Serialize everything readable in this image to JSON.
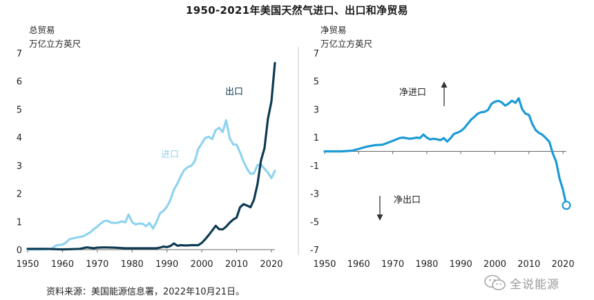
{
  "title": "1950-2021年美国天然气进口、出口和净贸易",
  "source": "资料来源：美国能源信息署，2022年10月21日。",
  "watermark": "全说能源",
  "colors": {
    "imports": "#8fd3f0",
    "exports": "#0d3a52",
    "net": "#1a9ad6",
    "axis": "#666666"
  },
  "chart_data": [
    {
      "type": "line",
      "panel": "left",
      "ylabel_line1": "总贸易",
      "ylabel_line2": "万亿立方英尺",
      "xlim": [
        1950,
        2021
      ],
      "ylim": [
        0,
        7
      ],
      "x_ticks": [
        1950,
        1960,
        1970,
        1980,
        1990,
        2000,
        2010,
        2020
      ],
      "y_ticks": [
        0,
        1,
        2,
        3,
        4,
        5,
        6,
        7
      ],
      "annotations": [
        "进口",
        "出口"
      ],
      "series": [
        {
          "name": "进口",
          "x": [
            1950,
            1955,
            1957,
            1958,
            1959,
            1960,
            1961,
            1962,
            1963,
            1964,
            1965,
            1966,
            1967,
            1968,
            1969,
            1970,
            1971,
            1972,
            1973,
            1974,
            1975,
            1976,
            1977,
            1978,
            1979,
            1980,
            1981,
            1982,
            1983,
            1984,
            1985,
            1986,
            1987,
            1988,
            1989,
            1990,
            1991,
            1992,
            1993,
            1994,
            1995,
            1996,
            1997,
            1998,
            1999,
            2000,
            2001,
            2002,
            2003,
            2004,
            2005,
            2006,
            2007,
            2008,
            2009,
            2010,
            2011,
            2012,
            2013,
            2014,
            2015,
            2016,
            2017,
            2018,
            2019,
            2020,
            2021
          ],
          "y": [
            0.0,
            0.01,
            0.04,
            0.14,
            0.17,
            0.18,
            0.25,
            0.37,
            0.4,
            0.43,
            0.45,
            0.48,
            0.55,
            0.62,
            0.73,
            0.82,
            0.93,
            1.02,
            1.03,
            0.96,
            0.95,
            0.96,
            1.01,
            0.97,
            1.25,
            0.98,
            0.9,
            0.93,
            0.92,
            0.84,
            0.95,
            0.75,
            0.99,
            1.29,
            1.38,
            1.53,
            1.77,
            2.14,
            2.35,
            2.62,
            2.84,
            2.94,
            2.99,
            3.15,
            3.59,
            3.78,
            3.98,
            4.02,
            3.94,
            4.26,
            4.34,
            4.19,
            4.61,
            3.98,
            3.75,
            3.74,
            3.46,
            3.14,
            2.88,
            2.7,
            2.72,
            3.01,
            3.03,
            2.88,
            2.74,
            2.55,
            2.81
          ]
        },
        {
          "name": "出口",
          "x": [
            1950,
            1955,
            1960,
            1963,
            1965,
            1967,
            1969,
            1970,
            1972,
            1975,
            1978,
            1980,
            1982,
            1985,
            1987,
            1988,
            1989,
            1990,
            1991,
            1992,
            1993,
            1994,
            1995,
            1996,
            1997,
            1998,
            1999,
            2000,
            2001,
            2002,
            2003,
            2004,
            2005,
            2006,
            2007,
            2008,
            2009,
            2010,
            2011,
            2012,
            2013,
            2014,
            2015,
            2016,
            2017,
            2018,
            2019,
            2020,
            2021
          ],
          "y": [
            0.03,
            0.03,
            0.01,
            0.02,
            0.03,
            0.08,
            0.05,
            0.07,
            0.08,
            0.07,
            0.05,
            0.05,
            0.05,
            0.05,
            0.05,
            0.07,
            0.11,
            0.09,
            0.13,
            0.22,
            0.14,
            0.16,
            0.15,
            0.15,
            0.16,
            0.16,
            0.16,
            0.24,
            0.37,
            0.52,
            0.68,
            0.85,
            0.73,
            0.72,
            0.82,
            0.96,
            1.07,
            1.14,
            1.51,
            1.62,
            1.57,
            1.51,
            1.78,
            2.33,
            3.17,
            3.61,
            4.66,
            5.28,
            6.65
          ]
        }
      ]
    },
    {
      "type": "line",
      "panel": "right",
      "ylabel_line1": "净贸易",
      "ylabel_line2": "万亿立方英尺",
      "xlim": [
        1950,
        2021
      ],
      "ylim": [
        -7,
        7
      ],
      "x_ticks": [
        1950,
        1960,
        1970,
        1980,
        1990,
        2000,
        2010,
        2020
      ],
      "y_ticks": [
        7,
        5,
        3,
        1,
        -1,
        -3,
        -5,
        -7
      ],
      "annotations": [
        "净进口",
        "净出口"
      ],
      "series": [
        {
          "name": "净贸易",
          "x": [
            1950,
            1955,
            1958,
            1960,
            1962,
            1965,
            1967,
            1970,
            1972,
            1973,
            1975,
            1976,
            1977,
            1978,
            1979,
            1980,
            1981,
            1982,
            1983,
            1984,
            1985,
            1986,
            1987,
            1988,
            1989,
            1990,
            1991,
            1992,
            1993,
            1994,
            1995,
            1996,
            1997,
            1998,
            1999,
            2000,
            2001,
            2002,
            2003,
            2004,
            2005,
            2006,
            2007,
            2008,
            2009,
            2010,
            2011,
            2012,
            2013,
            2014,
            2015,
            2016,
            2017,
            2018,
            2019,
            2020,
            2021
          ],
          "y": [
            0.0,
            0.0,
            0.05,
            0.17,
            0.32,
            0.45,
            0.47,
            0.75,
            0.95,
            0.98,
            0.9,
            0.93,
            0.98,
            0.95,
            1.2,
            0.98,
            0.85,
            0.9,
            0.86,
            0.8,
            0.95,
            0.7,
            0.95,
            1.25,
            1.33,
            1.45,
            1.65,
            1.95,
            2.26,
            2.46,
            2.69,
            2.79,
            2.82,
            2.95,
            3.38,
            3.54,
            3.6,
            3.5,
            3.26,
            3.4,
            3.61,
            3.46,
            3.78,
            3.02,
            2.68,
            2.6,
            1.95,
            1.52,
            1.31,
            1.18,
            0.94,
            0.68,
            -0.14,
            -0.73,
            -1.92,
            -2.73,
            -3.84
          ]
        }
      ]
    }
  ]
}
